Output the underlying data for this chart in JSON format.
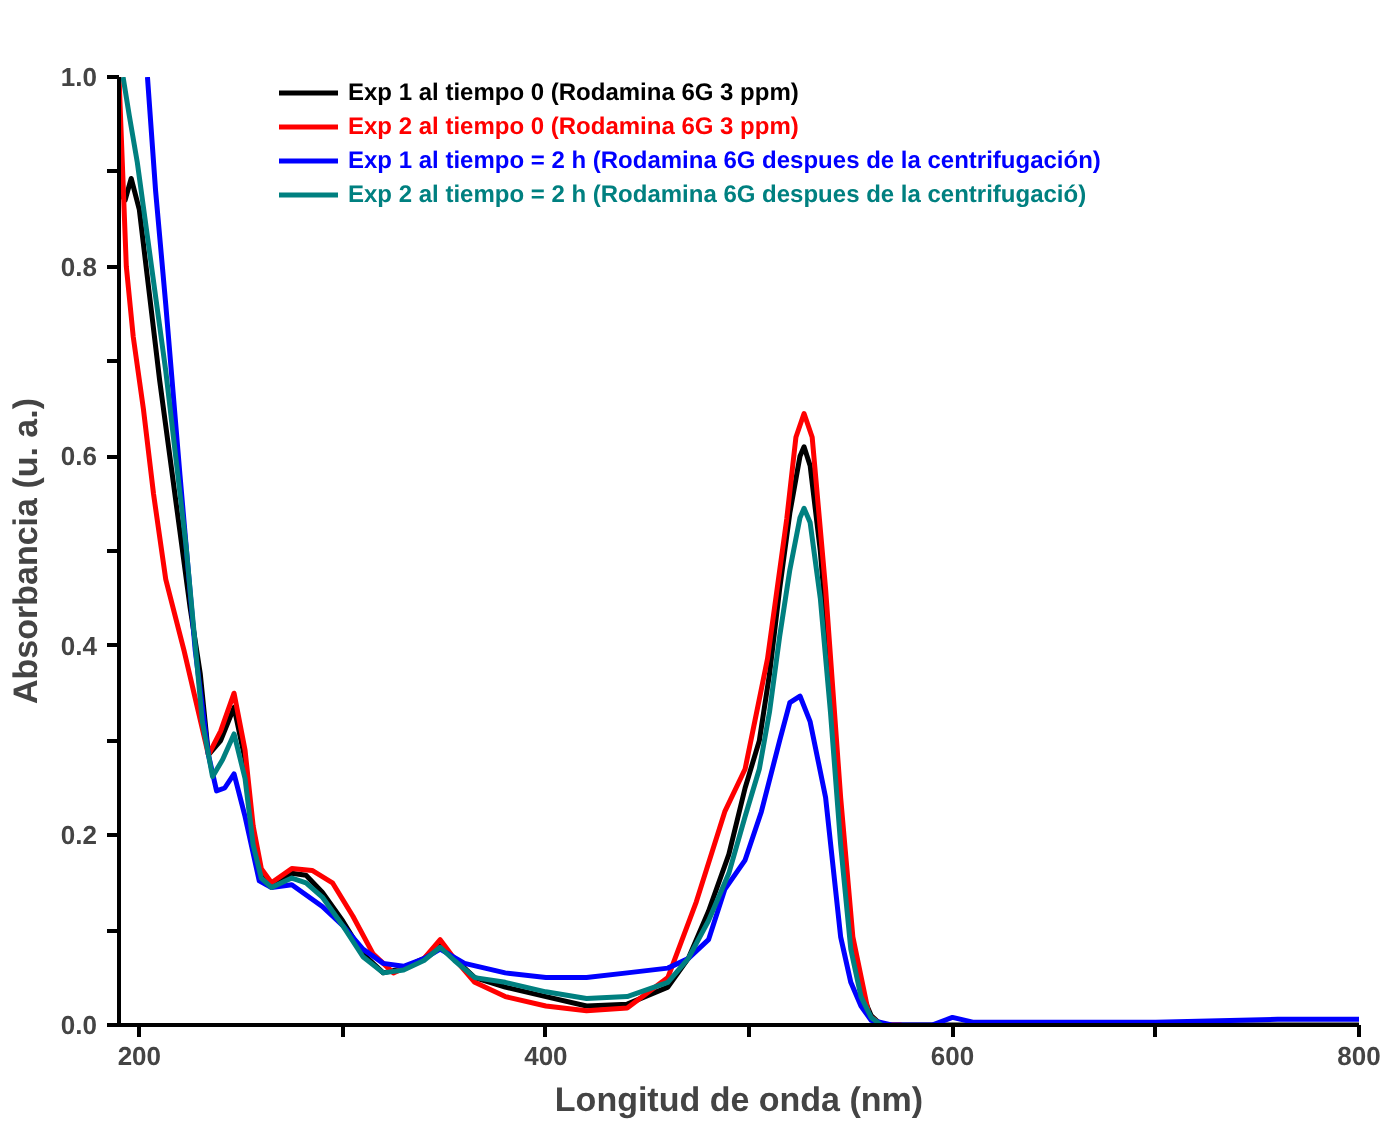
{
  "chart_data": {
    "type": "line",
    "xlabel": "Longitud de onda (nm)",
    "ylabel": "Absorbancia (u. a.)",
    "xlim": [
      190,
      800
    ],
    "ylim": [
      0,
      1
    ],
    "xticks": [
      200,
      {
        "value": 300,
        "label": null
      },
      400,
      {
        "value": 500,
        "label": null
      },
      600,
      {
        "value": 700,
        "label": null
      },
      800
    ],
    "yticks": [
      {
        "value": 0,
        "label": "0.0"
      },
      {
        "value": 0.1,
        "label": null
      },
      {
        "value": 0.2,
        "label": "0.2"
      },
      {
        "value": 0.3,
        "label": null
      },
      {
        "value": 0.4,
        "label": "0.4"
      },
      {
        "value": 0.5,
        "label": null
      },
      {
        "value": 0.6,
        "label": "0.6"
      },
      {
        "value": 0.7,
        "label": null
      },
      {
        "value": 0.8,
        "label": "0.8"
      },
      {
        "value": 0.9,
        "label": null
      },
      {
        "value": 1.0,
        "label": "1.0"
      }
    ],
    "grid": false,
    "legend": "top right",
    "line_style": "solid",
    "marker": "none",
    "series": [
      {
        "name": "Exp 1 al tiempo 0 (Rodamina 6G 3 ppm)",
        "color": "#000000",
        "x": [
          190,
          193,
          196,
          200,
          205,
          210,
          215,
          220,
          225,
          230,
          234,
          240,
          246.6,
          252,
          256,
          260,
          265,
          275,
          282,
          290,
          300,
          310,
          320,
          330,
          340,
          348,
          355,
          365,
          380,
          400,
          420,
          440,
          460,
          470,
          480,
          490,
          498,
          505,
          510,
          515,
          520,
          525,
          527,
          530,
          535,
          540,
          545,
          550,
          555,
          560,
          565,
          575,
          600,
          700,
          800
        ],
        "values": [
          0.88,
          0.87,
          0.893,
          0.86,
          0.77,
          0.68,
          0.6,
          0.52,
          0.44,
          0.37,
          0.285,
          0.3,
          0.335,
          0.28,
          0.2,
          0.16,
          0.148,
          0.16,
          0.158,
          0.14,
          0.11,
          0.075,
          0.055,
          0.06,
          0.07,
          0.085,
          0.07,
          0.05,
          0.04,
          0.03,
          0.02,
          0.022,
          0.04,
          0.07,
          0.12,
          0.18,
          0.25,
          0.3,
          0.37,
          0.46,
          0.54,
          0.6,
          0.61,
          0.59,
          0.5,
          0.37,
          0.22,
          0.09,
          0.035,
          0.01,
          0.0,
          0.0,
          0.0,
          0.0,
          0.0
        ]
      },
      {
        "name": "Exp 2 al tiempo 0 (Rodamina 6G 3 ppm)",
        "color": "#ff0000",
        "x": [
          190,
          193.6,
          197,
          202,
          207,
          213,
          222,
          228,
          234,
          240,
          246.6,
          252,
          256,
          260,
          265,
          275,
          285,
          295,
          305,
          315,
          325,
          340,
          348,
          355,
          365,
          380,
          400,
          420,
          440,
          460,
          474,
          488,
          498,
          509,
          518.5,
          523,
          527,
          531,
          537.6,
          545,
          551,
          559,
          565,
          575
        ],
        "values": [
          1.0,
          0.8,
          0.726,
          0.65,
          0.56,
          0.47,
          0.395,
          0.34,
          0.285,
          0.31,
          0.35,
          0.29,
          0.21,
          0.165,
          0.15,
          0.165,
          0.163,
          0.15,
          0.115,
          0.075,
          0.055,
          0.07,
          0.09,
          0.07,
          0.045,
          0.03,
          0.02,
          0.015,
          0.018,
          0.05,
          0.13,
          0.225,
          0.27,
          0.386,
          0.534,
          0.62,
          0.645,
          0.62,
          0.46,
          0.24,
          0.093,
          0.01,
          0.0,
          0.0
        ]
      },
      {
        "name": "Exp 1 al tiempo = 2 h (Rodamina 6G despues de la centrifugación)",
        "color": "#0000ff",
        "x": [
          204,
          208,
          213,
          220,
          227.5,
          234,
          238,
          242,
          246.6,
          252,
          259,
          265,
          275,
          290,
          300,
          310,
          320,
          330,
          340,
          348,
          360,
          380,
          400,
          420,
          440,
          460,
          470,
          480,
          488,
          498,
          506,
          515,
          520,
          525,
          530,
          537.6,
          545,
          550,
          555,
          560,
          570,
          590,
          600,
          610,
          700,
          760,
          800
        ],
        "values": [
          1.0,
          0.88,
          0.76,
          0.58,
          0.395,
          0.285,
          0.247,
          0.25,
          0.265,
          0.22,
          0.152,
          0.145,
          0.148,
          0.125,
          0.105,
          0.08,
          0.065,
          0.062,
          0.07,
          0.08,
          0.065,
          0.055,
          0.05,
          0.05,
          0.055,
          0.06,
          0.07,
          0.09,
          0.143,
          0.174,
          0.225,
          0.3,
          0.34,
          0.347,
          0.32,
          0.24,
          0.093,
          0.045,
          0.02,
          0.005,
          0.0,
          0.0,
          0.008,
          0.003,
          0.003,
          0.006,
          0.006
        ]
      },
      {
        "name": "Exp 2 al tiempo = 2 h (Rodamina 6G despues de la centrifugació)",
        "color": "#008080",
        "x": [
          192,
          195,
          199,
          206,
          213,
          223,
          231,
          236,
          241,
          246.6,
          252,
          256,
          260,
          265,
          275,
          282,
          290,
          300,
          310,
          320,
          330,
          340,
          348,
          355,
          365,
          380,
          400,
          420,
          440,
          460,
          470,
          480,
          490,
          498,
          505,
          510,
          515,
          520,
          525,
          527,
          530,
          535,
          540,
          545,
          550,
          555,
          560,
          565
        ],
        "values": [
          1.0,
          0.96,
          0.91,
          0.8,
          0.69,
          0.505,
          0.32,
          0.262,
          0.28,
          0.307,
          0.26,
          0.19,
          0.155,
          0.145,
          0.155,
          0.15,
          0.135,
          0.105,
          0.072,
          0.055,
          0.058,
          0.068,
          0.082,
          0.068,
          0.05,
          0.045,
          0.035,
          0.028,
          0.03,
          0.045,
          0.07,
          0.11,
          0.16,
          0.22,
          0.27,
          0.33,
          0.41,
          0.48,
          0.535,
          0.545,
          0.53,
          0.45,
          0.33,
          0.19,
          0.08,
          0.03,
          0.008,
          0.0
        ]
      }
    ]
  }
}
